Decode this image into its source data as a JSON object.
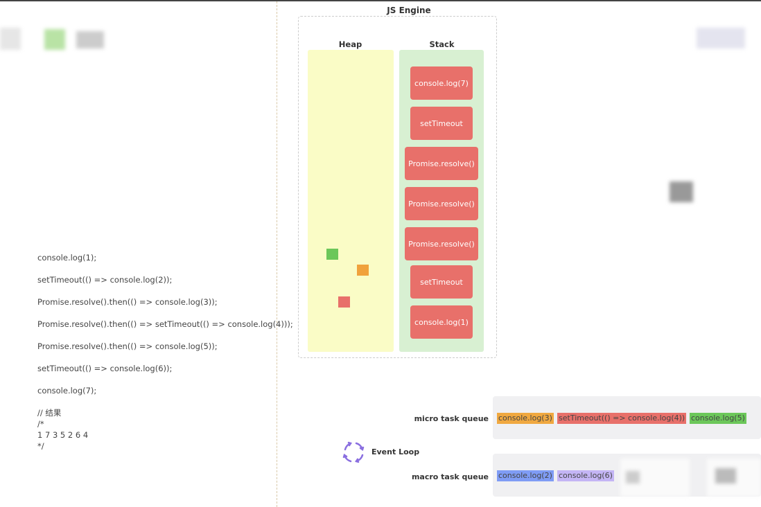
{
  "code_lines": [
    "console.log(1);",
    "",
    "setTimeout(() => console.log(2));",
    "",
    "Promise.resolve().then(() => console.log(3));",
    "",
    "Promise.resolve().then(() => setTimeout(() => console.log(4)));",
    "",
    "Promise.resolve().then(() => console.log(5));",
    "",
    "setTimeout(() => console.log(6));",
    "",
    "console.log(7);",
    "",
    "// 结果",
    "/*",
    "1 7 3 5 2 6 4",
    "*/"
  ],
  "engine": {
    "title": "JS Engine",
    "heap_label": "Heap",
    "stack_label": "Stack",
    "heap_objects": [
      {
        "color": "#6cc75a"
      },
      {
        "color": "#f0a23c"
      },
      {
        "color": "#e8706a"
      }
    ],
    "stack_frames": [
      "console.log(7)",
      "setTimeout",
      "Promise.resolve()",
      "Promise.resolve()",
      "Promise.resolve()",
      "setTimeout",
      "console.log(1)"
    ]
  },
  "event_loop": {
    "label": "Event Loop",
    "icon": "refresh-cycle-icon",
    "color": "#8a6fe0"
  },
  "micro_queue": {
    "label": "micro task queue",
    "items": [
      {
        "text": "console.log(3)",
        "color": "#f0a840"
      },
      {
        "text": "setTimeout(() => console.log(4))",
        "color": "#e8706a"
      },
      {
        "text": "console.log(5)",
        "color": "#6cc75a"
      }
    ]
  },
  "macro_queue": {
    "label": "macro task queue",
    "items": [
      {
        "text": "console.log(2)",
        "color": "#7f9cf5"
      },
      {
        "text": "console.log(6)",
        "color": "#c4b5f5"
      }
    ]
  }
}
